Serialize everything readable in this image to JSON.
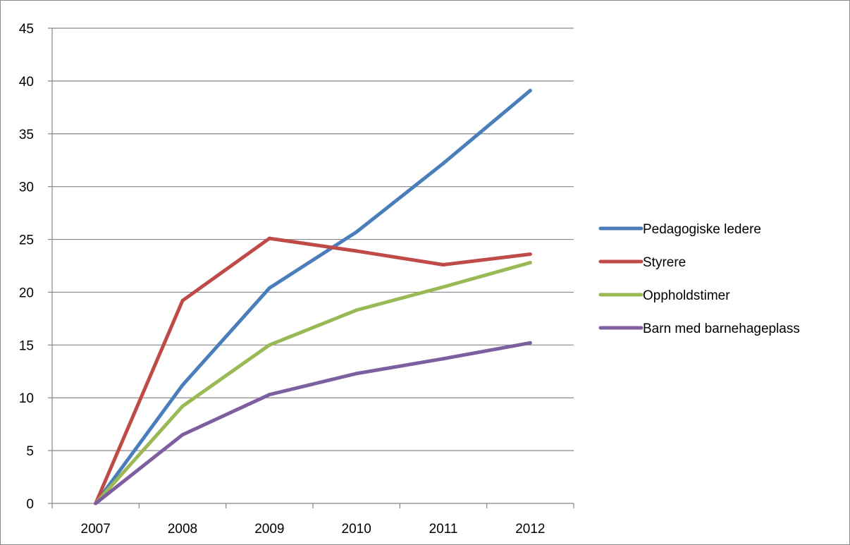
{
  "chart_data": {
    "type": "line",
    "title": "",
    "xlabel": "",
    "ylabel": "",
    "categories": [
      "2007",
      "2008",
      "2009",
      "2010",
      "2011",
      "2012"
    ],
    "ylim": [
      0,
      45
    ],
    "yticks": [
      0,
      5,
      10,
      15,
      20,
      25,
      30,
      35,
      40,
      45
    ],
    "grid": "horizontal",
    "legend_position": "right",
    "series": [
      {
        "name": "Pedagogiske ledere",
        "color": "#4a7ebb",
        "values": [
          0,
          11.2,
          20.4,
          25.7,
          32.2,
          39.1
        ]
      },
      {
        "name": "Styrere",
        "color": "#be4b48",
        "values": [
          0,
          19.2,
          25.1,
          23.9,
          22.6,
          23.6
        ]
      },
      {
        "name": "Oppholdstimer",
        "color": "#98b954",
        "values": [
          0,
          9.2,
          15.0,
          18.3,
          20.5,
          22.8
        ]
      },
      {
        "name": "Barn med barnehageplass",
        "color": "#7d5fa0",
        "values": [
          0,
          6.5,
          10.3,
          12.3,
          13.7,
          15.2
        ]
      }
    ]
  }
}
